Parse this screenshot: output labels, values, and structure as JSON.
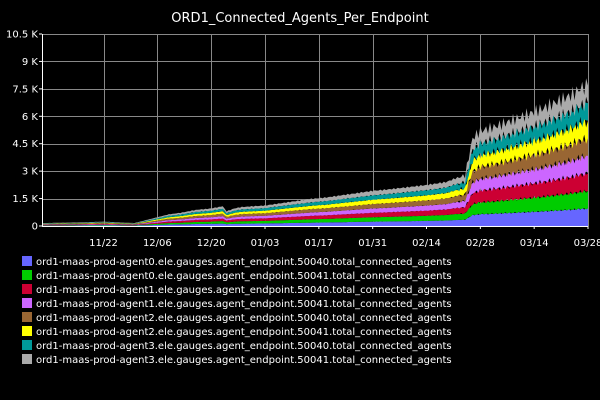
{
  "chart_data": {
    "type": "area",
    "title": "ORD1_Connected_Agents_Per_Endpoint",
    "xlabel": "",
    "ylabel": "",
    "ylim": [
      0,
      10500
    ],
    "y_ticks": [
      0,
      1500,
      3000,
      4500,
      6000,
      7500,
      9000,
      10500
    ],
    "y_tick_labels": [
      "0",
      "1.5 K",
      "3 K",
      "4.5 K",
      "6 K",
      "7.5 K",
      "9 K",
      "10.5 K"
    ],
    "x_ticks": [
      16,
      30,
      44,
      58,
      72,
      86,
      100,
      114,
      128,
      142
    ],
    "x_tick_labels": [
      "11/22",
      "12/06",
      "12/20",
      "01/03",
      "01/17",
      "01/31",
      "02/14",
      "02/28",
      "03/14",
      "03/28"
    ],
    "xlim": [
      0,
      142
    ],
    "grid": true,
    "legend_position": "bottom",
    "x": [
      0,
      10,
      16,
      20,
      24,
      27,
      30,
      33,
      36,
      40,
      44,
      47,
      48,
      50,
      52,
      55,
      58,
      62,
      66,
      70,
      74,
      78,
      82,
      86,
      90,
      95,
      100,
      105,
      108,
      110,
      112,
      114,
      118,
      122,
      126,
      130,
      134,
      138,
      140,
      142
    ],
    "series": [
      {
        "name": "ord1-maas-prod-agent0.ele.gauges.agent_endpoint.50040.total_connected_agents",
        "color": "#6666ff",
        "values": [
          20,
          25,
          30,
          25,
          20,
          40,
          60,
          80,
          90,
          110,
          120,
          135,
          100,
          120,
          130,
          135,
          140,
          155,
          170,
          185,
          195,
          210,
          225,
          240,
          250,
          265,
          280,
          300,
          330,
          345,
          600,
          650,
          680,
          720,
          760,
          800,
          850,
          900,
          940,
          960
        ]
      },
      {
        "name": "ord1-maas-prod-agent0.ele.gauges.agent_endpoint.50041.total_connected_agents",
        "color": "#00cc00",
        "values": [
          20,
          25,
          30,
          25,
          20,
          40,
          60,
          80,
          90,
          110,
          120,
          135,
          100,
          120,
          130,
          135,
          140,
          155,
          170,
          185,
          195,
          210,
          225,
          240,
          250,
          265,
          280,
          300,
          330,
          345,
          600,
          650,
          680,
          720,
          760,
          800,
          850,
          900,
          940,
          960
        ]
      },
      {
        "name": "ord1-maas-prod-agent1.ele.gauges.agent_endpoint.50040.total_connected_agents",
        "color": "#cc0033",
        "values": [
          20,
          25,
          30,
          25,
          20,
          40,
          60,
          80,
          90,
          110,
          120,
          135,
          100,
          120,
          130,
          135,
          140,
          155,
          170,
          185,
          195,
          210,
          225,
          240,
          250,
          265,
          280,
          300,
          330,
          345,
          600,
          650,
          680,
          720,
          760,
          800,
          850,
          900,
          940,
          960
        ]
      },
      {
        "name": "ord1-maas-prod-agent1.ele.gauges.agent_endpoint.50041.total_connected_agents",
        "color": "#cc66ff",
        "values": [
          20,
          25,
          30,
          25,
          20,
          40,
          60,
          80,
          90,
          110,
          120,
          135,
          100,
          120,
          130,
          135,
          140,
          155,
          170,
          185,
          195,
          210,
          225,
          240,
          250,
          265,
          280,
          300,
          330,
          345,
          600,
          650,
          680,
          720,
          760,
          800,
          850,
          900,
          940,
          960
        ]
      },
      {
        "name": "ord1-maas-prod-agent2.ele.gauges.agent_endpoint.50040.total_connected_agents",
        "color": "#996633",
        "values": [
          20,
          25,
          30,
          25,
          20,
          40,
          60,
          80,
          90,
          110,
          120,
          135,
          100,
          120,
          130,
          135,
          140,
          155,
          170,
          185,
          195,
          210,
          225,
          240,
          250,
          265,
          280,
          300,
          330,
          345,
          600,
          650,
          680,
          720,
          760,
          800,
          850,
          900,
          940,
          960
        ]
      },
      {
        "name": "ord1-maas-prod-agent2.ele.gauges.agent_endpoint.50041.total_connected_agents",
        "color": "#ffff00",
        "values": [
          20,
          25,
          30,
          25,
          20,
          40,
          60,
          80,
          90,
          110,
          120,
          135,
          100,
          120,
          130,
          135,
          140,
          155,
          170,
          185,
          195,
          210,
          225,
          240,
          250,
          265,
          280,
          300,
          330,
          345,
          600,
          650,
          680,
          720,
          760,
          800,
          850,
          900,
          940,
          960
        ]
      },
      {
        "name": "ord1-maas-prod-agent3.ele.gauges.agent_endpoint.50040.total_connected_agents",
        "color": "#009999",
        "values": [
          20,
          25,
          30,
          25,
          20,
          40,
          60,
          80,
          90,
          110,
          120,
          135,
          100,
          120,
          130,
          135,
          140,
          155,
          170,
          185,
          195,
          210,
          225,
          240,
          250,
          265,
          280,
          300,
          330,
          345,
          600,
          650,
          680,
          720,
          760,
          800,
          850,
          900,
          940,
          960
        ]
      },
      {
        "name": "ord1-maas-prod-agent3.ele.gauges.agent_endpoint.50041.total_connected_agents",
        "color": "#aaaaaa",
        "values": [
          20,
          25,
          30,
          25,
          20,
          40,
          60,
          80,
          90,
          110,
          120,
          135,
          100,
          120,
          130,
          135,
          140,
          155,
          170,
          185,
          195,
          210,
          225,
          240,
          250,
          265,
          280,
          300,
          330,
          345,
          600,
          650,
          680,
          720,
          760,
          800,
          850,
          900,
          940,
          960
        ]
      }
    ]
  },
  "colors": {
    "background": "#000000",
    "grid": "#888888",
    "text": "#ffffff",
    "axis": "#ffffff"
  }
}
